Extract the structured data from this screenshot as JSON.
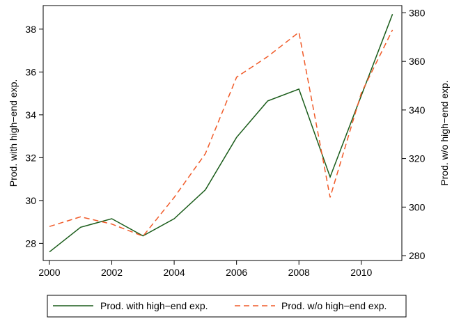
{
  "chart_data": {
    "type": "line",
    "x": [
      2000,
      2001,
      2002,
      2003,
      2004,
      2005,
      2006,
      2007,
      2008,
      2009,
      2010,
      2011
    ],
    "series": [
      {
        "name": "Prod. with high−end exp.",
        "axis": "left",
        "color": "#1a5c1a",
        "dash": "solid",
        "values": [
          27.6,
          28.75,
          29.15,
          28.35,
          29.15,
          30.5,
          32.95,
          34.65,
          35.2,
          31.1,
          34.9,
          38.7
        ]
      },
      {
        "name": "Prod. w/o high−end exp.",
        "axis": "right",
        "color": "#f05a28",
        "dash": "dashed",
        "values": [
          292,
          296,
          293,
          288,
          304,
          322,
          353.5,
          362,
          372,
          304,
          347,
          373
        ]
      }
    ],
    "xticks": [
      "2000",
      "2002",
      "2004",
      "2006",
      "2008",
      "2010"
    ],
    "yticks_left": [
      "28",
      "30",
      "32",
      "34",
      "36",
      "38"
    ],
    "yticks_right": [
      "280",
      "300",
      "320",
      "340",
      "360",
      "380"
    ],
    "xlim": [
      1999.8,
      2011.3
    ],
    "ylim_left": [
      27.2,
      39.1
    ],
    "ylim_right": [
      278,
      383
    ],
    "ylabel_left": "Prod. with high−end exp.",
    "ylabel_right": "Prod. w/o high−end exp.",
    "grid": false,
    "legend_position": "bottom"
  },
  "legend": {
    "item1": "Prod. with high−end exp.",
    "item2": "Prod. w/o high−end exp."
  }
}
